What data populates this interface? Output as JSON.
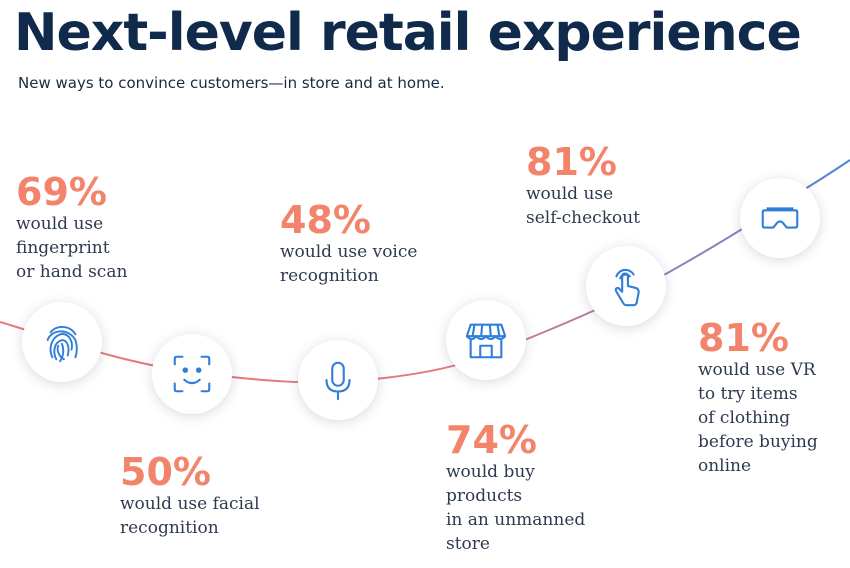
{
  "header": {
    "title": "Next-level retail experience",
    "subtitle": "New ways to convince customers—in store and at home."
  },
  "colors": {
    "title": "#102a4c",
    "percent": "#f3846c",
    "text": "#2e3a4f",
    "icon": "#2f7fd8",
    "curve_start": "#e8787a",
    "curve_end": "#4a86d8"
  },
  "stats": [
    {
      "percent": "69%",
      "text": "would use\nfingerprint\nor hand scan",
      "icon": "fingerprint-icon"
    },
    {
      "percent": "50%",
      "text": "would use facial\nrecognition",
      "icon": "face-scan-icon"
    },
    {
      "percent": "48%",
      "text": "would use voice\nrecognition",
      "icon": "microphone-icon"
    },
    {
      "percent": "74%",
      "text": "would buy\nproducts\nin an unmanned\nstore",
      "icon": "storefront-icon"
    },
    {
      "percent": "81%",
      "text": "would use\nself-checkout",
      "icon": "touch-hand-icon"
    },
    {
      "percent": "81%",
      "text": "would use VR\nto try items\nof clothing\nbefore buying\nonline",
      "icon": "vr-headset-icon"
    }
  ]
}
